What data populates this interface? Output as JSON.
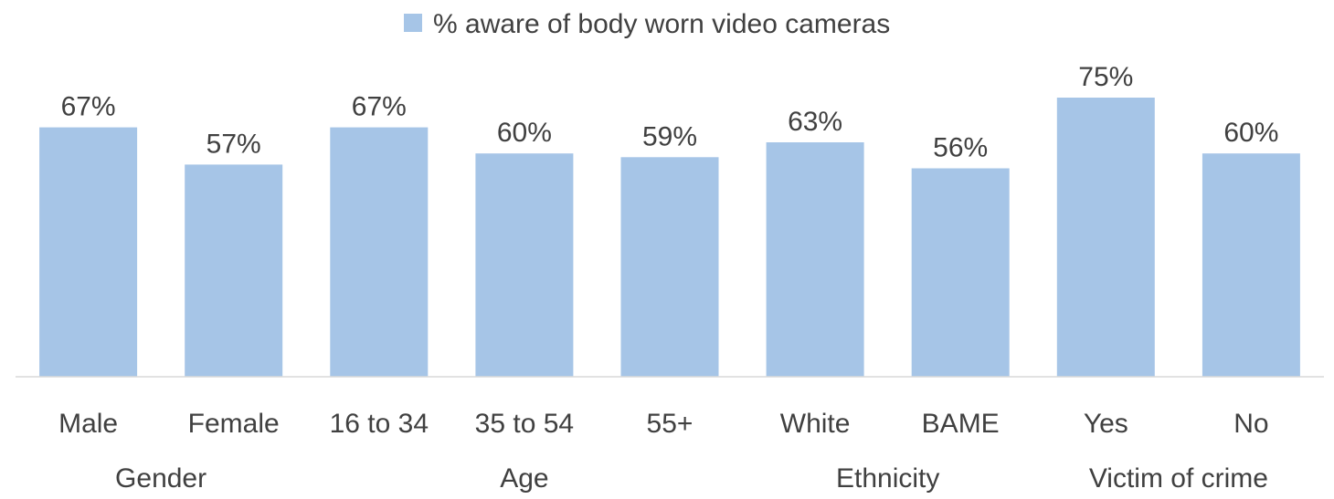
{
  "chart_data": {
    "type": "bar",
    "legend": {
      "label": "% aware of body worn video cameras",
      "position": "top"
    },
    "color": "#A6C5E7",
    "categories": [
      "Male",
      "Female",
      "16 to 34",
      "35 to 54",
      "55+",
      "White",
      "BAME",
      "Yes",
      "No"
    ],
    "series": [
      {
        "name": "% aware of body worn video cameras",
        "values": [
          67,
          57,
          67,
          60,
          59,
          63,
          56,
          75,
          60
        ],
        "value_labels": [
          "67%",
          "57%",
          "67%",
          "60%",
          "59%",
          "63%",
          "56%",
          "75%",
          "60%"
        ]
      }
    ],
    "groups": [
      {
        "label": "Gender",
        "categories": [
          "Male",
          "Female"
        ]
      },
      {
        "label": "Age",
        "categories": [
          "16 to 34",
          "35 to 54",
          "55+"
        ]
      },
      {
        "label": "Ethnicity",
        "categories": [
          "White",
          "BAME"
        ]
      },
      {
        "label": "Victim of crime",
        "categories": [
          "Yes",
          "No"
        ]
      }
    ],
    "ylim": [
      0,
      100
    ],
    "grid": false
  }
}
